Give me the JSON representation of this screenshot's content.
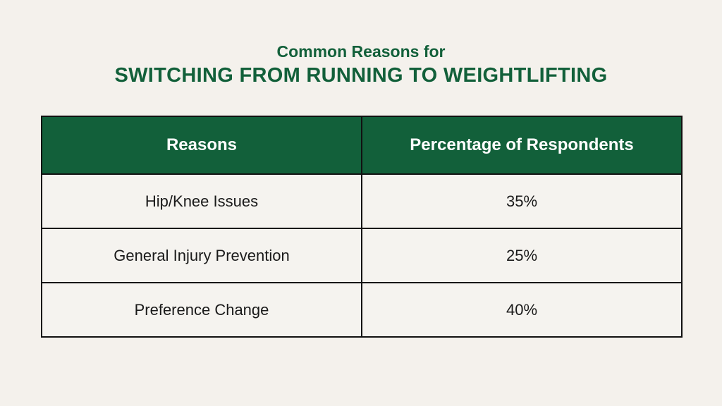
{
  "header": {
    "subtitle": "Common Reasons for",
    "title": "SWITCHING FROM RUNNING TO WEIGHTLIFTING"
  },
  "table": {
    "columns": [
      "Reasons",
      "Percentage of Respondents"
    ],
    "rows": [
      [
        "Hip/Knee Issues",
        "35%"
      ],
      [
        "General Injury Prevention",
        "25%"
      ],
      [
        "Preference Change",
        "40%"
      ]
    ]
  },
  "colors": {
    "accent": "#12603a",
    "background": "#f4f1ec",
    "header_text": "#ffffff",
    "border": "#111111"
  }
}
